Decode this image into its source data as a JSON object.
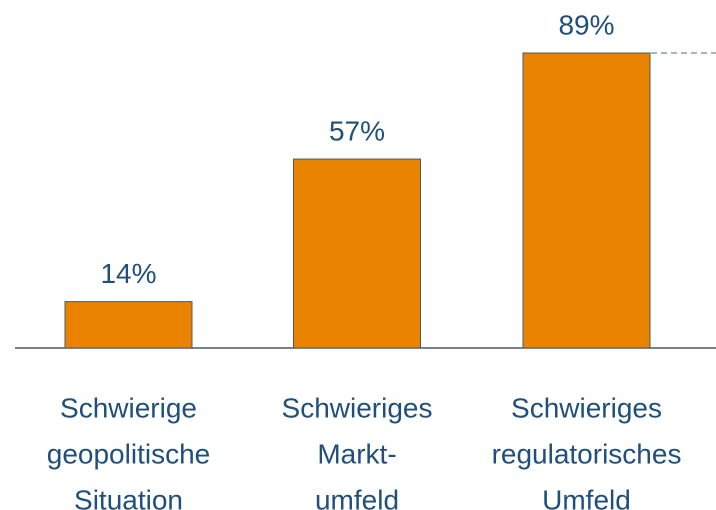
{
  "chart_data": {
    "type": "bar",
    "categories": [
      [
        "Schwierige",
        "geopolitische",
        "Situation"
      ],
      [
        "Schwieriges",
        "Markt-",
        "umfeld"
      ],
      [
        "Schwieriges",
        "regulatorisches",
        "Umfeld"
      ]
    ],
    "values": [
      14,
      57,
      89
    ],
    "value_labels": [
      "14%",
      "57%",
      "89%"
    ],
    "color": "#e98300"
  }
}
